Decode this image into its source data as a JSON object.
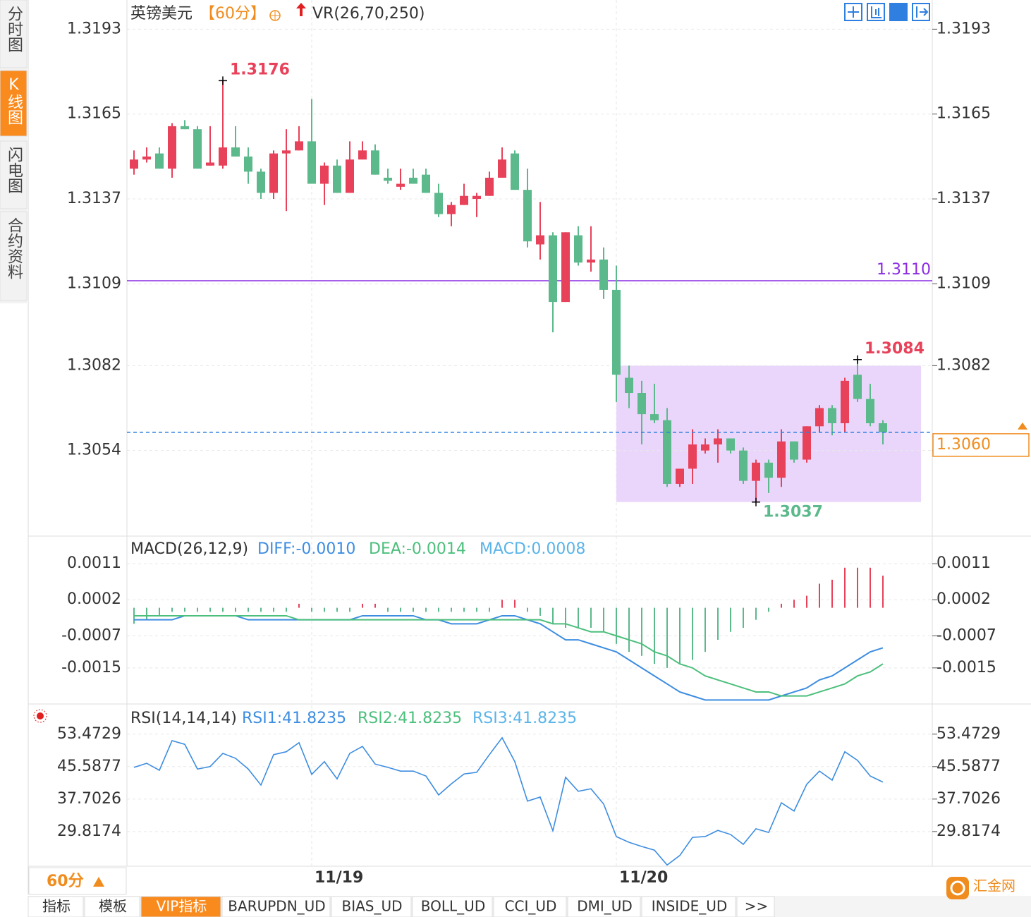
{
  "header": {
    "title": "英镑美元",
    "period": "【60分】",
    "indicator": "VR(26,70,250)"
  },
  "sidebar": {
    "tabs": [
      "分时图",
      "K线图",
      "闪电图",
      "合约资料"
    ],
    "active": 1
  },
  "period_button": "60分",
  "tabs": {
    "items": [
      "指标",
      "模板",
      "VIP指标",
      "BARUPDN_UD",
      "BIAS_UD",
      "BOLL_UD",
      "CCI_UD",
      "DMI_UD",
      "INSIDE_UD",
      ">>"
    ],
    "active": 2
  },
  "logo": "汇金网",
  "chart_data": [
    {
      "type": "candlestick",
      "up_color": "#e8415a",
      "down_color": "#5bb98b",
      "categories": [
        null,
        null,
        null,
        null,
        null,
        null,
        null,
        null,
        null,
        null,
        null,
        null,
        null,
        null,
        "11/19",
        null,
        null,
        null,
        null,
        null,
        null,
        null,
        null,
        null,
        null,
        null,
        null,
        null,
        null,
        null,
        null,
        null,
        null,
        null,
        null,
        null,
        null,
        null,
        "11/20",
        null,
        null,
        null,
        null,
        null,
        null,
        null,
        null,
        null,
        null,
        null,
        null,
        null,
        null,
        null,
        null,
        null,
        null,
        null,
        null,
        null
      ],
      "open": [
        1.3147,
        1.315,
        1.3152,
        1.3147,
        1.3161,
        1.316,
        1.3148,
        1.3148,
        1.3154,
        1.3151,
        1.3146,
        1.3139,
        1.3152,
        1.3153,
        1.3156,
        1.3142,
        1.3148,
        1.3139,
        1.315,
        1.3153,
        1.3144,
        1.3141,
        1.3144,
        1.3145,
        1.3139,
        1.3132,
        1.3135,
        1.3137,
        1.3138,
        1.3144,
        1.3152,
        1.314,
        1.3122,
        1.3125,
        1.3103,
        1.3125,
        1.3116,
        1.3117,
        1.3107,
        1.3078,
        1.3073,
        1.3066,
        1.3064,
        1.3043,
        1.3048,
        1.3054,
        1.3056,
        1.3058,
        1.3054,
        1.3044,
        1.305,
        1.3045,
        1.3057,
        1.3051,
        1.3062,
        1.3068,
        1.3063,
        1.3079,
        1.3071,
        1.3063
      ],
      "high": [
        1.3153,
        1.3154,
        1.3154,
        1.3162,
        1.3163,
        1.3161,
        1.3161,
        1.3176,
        1.3161,
        1.3154,
        1.3147,
        1.3153,
        1.316,
        1.3161,
        1.317,
        1.3149,
        1.315,
        1.3156,
        1.3156,
        1.3155,
        1.3147,
        1.3147,
        1.3147,
        1.3147,
        1.3142,
        1.3136,
        1.3142,
        1.3139,
        1.3146,
        1.3154,
        1.3153,
        1.3147,
        1.3136,
        1.3126,
        1.3126,
        1.3128,
        1.3128,
        1.3121,
        1.3115,
        1.3082,
        1.3077,
        1.3076,
        1.3068,
        1.3048,
        1.3061,
        1.3058,
        1.3061,
        1.3058,
        1.3055,
        1.3051,
        1.3051,
        1.3061,
        1.3057,
        1.3062,
        1.3069,
        1.3069,
        1.3078,
        1.3084,
        1.3076,
        1.3064
      ],
      "low": [
        1.3145,
        1.3149,
        1.3147,
        1.3144,
        1.316,
        1.3147,
        1.3148,
        1.3147,
        1.3151,
        1.3142,
        1.3137,
        1.3137,
        1.3133,
        1.3153,
        1.3142,
        1.3135,
        1.3139,
        1.3139,
        1.315,
        1.3145,
        1.3142,
        1.314,
        1.3142,
        1.3139,
        1.3131,
        1.3128,
        1.3135,
        1.3131,
        1.3138,
        1.3144,
        1.314,
        1.3121,
        1.3117,
        1.3093,
        1.3103,
        1.3115,
        1.3113,
        1.3104,
        1.307,
        1.3068,
        1.3056,
        1.3063,
        1.3042,
        1.3042,
        1.3043,
        1.3053,
        1.305,
        1.3053,
        1.3043,
        1.3037,
        1.304,
        1.3042,
        1.305,
        1.305,
        1.306,
        1.3059,
        1.306,
        1.307,
        1.3062,
        1.3056
      ],
      "close": [
        1.315,
        1.3151,
        1.3147,
        1.3161,
        1.316,
        1.3147,
        1.3149,
        1.3154,
        1.3151,
        1.3146,
        1.3139,
        1.3152,
        1.3153,
        1.3156,
        1.3142,
        1.3148,
        1.3139,
        1.315,
        1.3153,
        1.3145,
        1.3143,
        1.3142,
        1.3142,
        1.3139,
        1.3132,
        1.3135,
        1.3138,
        1.3138,
        1.3144,
        1.315,
        1.314,
        1.3123,
        1.3125,
        1.3103,
        1.3126,
        1.3116,
        1.3117,
        1.3107,
        1.3079,
        1.3073,
        1.3066,
        1.3064,
        1.3043,
        1.3048,
        1.3056,
        1.3056,
        1.3058,
        1.3054,
        1.3044,
        1.305,
        1.3045,
        1.3057,
        1.3051,
        1.3062,
        1.3068,
        1.3063,
        1.3077,
        1.3071,
        1.3063,
        1.306
      ],
      "ylim": [
        1.3026,
        1.3201
      ],
      "yticks": [
        1.3193,
        1.3165,
        1.3137,
        1.3109,
        1.3082,
        1.3054
      ],
      "grid": true,
      "annotations": [
        {
          "index": 7,
          "value": 1.3176,
          "position": "above",
          "color": "#e8415a"
        },
        {
          "index": 49,
          "value": 1.3037,
          "position": "below",
          "color": "#5bb98b"
        },
        {
          "index": 57,
          "value": 1.3084,
          "position": "above",
          "color": "#e8415a"
        }
      ],
      "range_box": {
        "from": 38,
        "to": 62,
        "low": 1.3037,
        "high": 1.3082,
        "color": "#ead6fb"
      },
      "hline": {
        "value": 1.311,
        "label": "1.3110",
        "color": "#8a2be2"
      },
      "last_price": {
        "value": 1.306,
        "label": "1.3060",
        "color": "#f08c1e",
        "line_color": "#2f7fe0"
      }
    },
    {
      "type": "macd",
      "title": "MACD(26,12,9)",
      "up_color": "#e8415a",
      "down_color": "#5bb98b",
      "ylim": [
        -0.0024,
        0.0017
      ],
      "yticks": [
        0.0011,
        0.0002,
        -0.0007,
        -0.0015
      ],
      "grid": true,
      "series": [
        {
          "name": "DIFF:-0.0010",
          "color": "#3d8de0",
          "values": [
            -0.0003,
            -0.0003,
            -0.0003,
            -0.0003,
            -0.0002,
            -0.0002,
            -0.0002,
            -0.0002,
            -0.0002,
            -0.0003,
            -0.0003,
            -0.0003,
            -0.0003,
            -0.0003,
            -0.0003,
            -0.0003,
            -0.0003,
            -0.0003,
            -0.0002,
            -0.0002,
            -0.0002,
            -0.0002,
            -0.0002,
            -0.0003,
            -0.0003,
            -0.0004,
            -0.0004,
            -0.0004,
            -0.0003,
            -0.0002,
            -0.0002,
            -0.0003,
            -0.0004,
            -0.0006,
            -0.0008,
            -0.0008,
            -0.0009,
            -0.001,
            -0.0011,
            -0.0013,
            -0.0015,
            -0.0017,
            -0.0019,
            -0.0021,
            -0.0022,
            -0.0023,
            -0.0023,
            -0.0023,
            -0.0023,
            -0.0023,
            -0.0023,
            -0.0022,
            -0.0021,
            -0.002,
            -0.0018,
            -0.0017,
            -0.0015,
            -0.0013,
            -0.0011,
            -0.001
          ]
        },
        {
          "name": "DEA:-0.0014",
          "color": "#4cbf7c",
          "values": [
            -0.0002,
            -0.0002,
            -0.0002,
            -0.0002,
            -0.0002,
            -0.0002,
            -0.0002,
            -0.0002,
            -0.0002,
            -0.0002,
            -0.0002,
            -0.0002,
            -0.0002,
            -0.0003,
            -0.0003,
            -0.0003,
            -0.0003,
            -0.0003,
            -0.0003,
            -0.0003,
            -0.0003,
            -0.0003,
            -0.0003,
            -0.0003,
            -0.0003,
            -0.0003,
            -0.0003,
            -0.0003,
            -0.0003,
            -0.0003,
            -0.0003,
            -0.0003,
            -0.0003,
            -0.0004,
            -0.0004,
            -0.0005,
            -0.0006,
            -0.0006,
            -0.0007,
            -0.0008,
            -0.0009,
            -0.0011,
            -0.0012,
            -0.0014,
            -0.0015,
            -0.0017,
            -0.0018,
            -0.0019,
            -0.002,
            -0.0021,
            -0.0021,
            -0.0022,
            -0.0022,
            -0.0022,
            -0.0021,
            -0.002,
            -0.0019,
            -0.0017,
            -0.0016,
            -0.0014
          ]
        }
      ],
      "histogram": {
        "name": "MACD:0.0008",
        "color": "#5ab4e8",
        "values": [
          -0.0004,
          -0.0003,
          -0.0002,
          -0.0001,
          -0.0001,
          -0.0001,
          -0.0001,
          -0.0001,
          -0.0001,
          -0.0001,
          -0.0001,
          -0.0001,
          -0.0001,
          0.0001,
          -0.0001,
          -0.0001,
          -0.0001,
          -0.0001,
          0.0001,
          0.0001,
          -0.0001,
          -0.0001,
          -0.0001,
          -0.0001,
          -0.0001,
          -0.0001,
          -0.0001,
          -0.0001,
          -0.0001,
          0.0002,
          0.0002,
          -0.0001,
          -0.0002,
          -0.0004,
          -0.0005,
          -0.0005,
          -0.0005,
          -0.0006,
          -0.0009,
          -0.0011,
          -0.0012,
          -0.0014,
          -0.0015,
          -0.0014,
          -0.0013,
          -0.0011,
          -0.0008,
          -0.0006,
          -0.0005,
          -0.0003,
          -0.0001,
          0.0001,
          0.0002,
          0.0003,
          0.0006,
          0.0007,
          0.001,
          0.001,
          0.001,
          0.0008
        ]
      }
    },
    {
      "type": "line",
      "title": "RSI(14,14,14)",
      "ylim": [
        21.4,
        59.6
      ],
      "yticks": [
        53.4729,
        45.5877,
        37.7026,
        29.8174
      ],
      "grid": true,
      "series": [
        {
          "name": "RSI1:41.8235",
          "color": "#3d8de0",
          "values": [
            45.4,
            46.4,
            44.7,
            51.9,
            51.0,
            45.0,
            45.6,
            48.8,
            47.6,
            45.0,
            41.1,
            48.5,
            49.2,
            51.4,
            43.7,
            46.8,
            42.6,
            48.8,
            50.5,
            46.2,
            45.4,
            44.5,
            44.5,
            43.3,
            38.7,
            41.4,
            43.8,
            44.2,
            48.5,
            52.6,
            46.8,
            37.2,
            38.2,
            30.0,
            43.0,
            39.6,
            40.2,
            36.5,
            28.6,
            27.2,
            26.2,
            25.3,
            21.7,
            24.0,
            28.4,
            28.6,
            30.1,
            29.1,
            26.7,
            30.5,
            29.6,
            36.8,
            34.8,
            41.3,
            44.5,
            42.3,
            49.2,
            47.1,
            43.3,
            41.8235
          ]
        },
        {
          "name": "RSI2:41.8235",
          "color": "#4cbf7c",
          "values": null
        },
        {
          "name": "RSI3:41.8235",
          "color": "#5ab4e8",
          "values": null
        }
      ]
    }
  ]
}
